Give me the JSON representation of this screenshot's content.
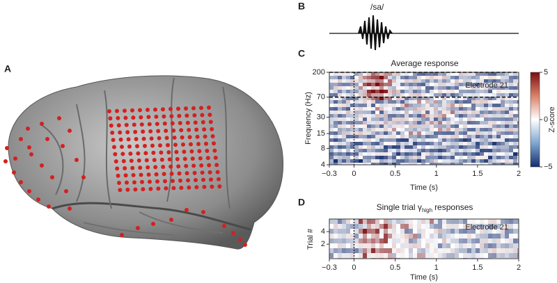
{
  "panel_a": {
    "label": "A"
  },
  "panel_b": {
    "label": "B",
    "stimulus": "/sa/"
  },
  "panel_c": {
    "label": "C",
    "title": "Average response",
    "ylabel": "Frequency (Hz)",
    "xlabel": "Time (s)",
    "annotation": "Electrode 21",
    "xlim": [
      -0.3,
      2
    ],
    "xticks": [
      {
        "value": -0.3,
        "label": "−0.3"
      },
      0,
      0.5,
      1,
      1.5,
      2
    ],
    "ylim": [
      4,
      200
    ],
    "log_y": true,
    "yticks": [
      200,
      70,
      30,
      15,
      8,
      4
    ],
    "dashed_lines": [
      200,
      70
    ],
    "stimulus_onset": 0,
    "colorbar": {
      "label": "Z-score",
      "lim": [
        -5,
        5
      ],
      "ticks": [
        5,
        0,
        {
          "value": -5,
          "label": "−5"
        }
      ]
    }
  },
  "panel_d": {
    "label": "D",
    "title_parts": [
      "Single trial γ",
      "high",
      "responses"
    ],
    "ylabel": "Trial #",
    "xlabel": "Time (s)",
    "annotation": "Electrode 21",
    "xlim": [
      -0.3,
      2
    ],
    "xticks": [
      {
        "value": -0.3,
        "label": "−0.3"
      },
      0,
      0.5,
      1,
      1.5,
      2
    ],
    "ylim": [
      -0.3,
      6
    ],
    "yticks": [
      2,
      4
    ],
    "stimulus_onset": 0
  }
}
